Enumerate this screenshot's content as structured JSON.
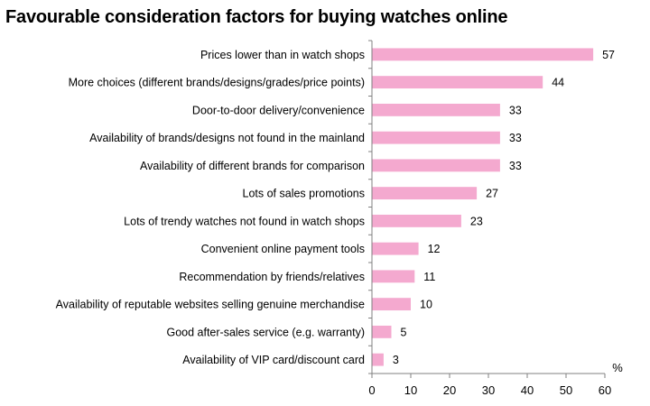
{
  "chart_data": {
    "type": "bar",
    "orientation": "horizontal",
    "title": "Favourable consideration factors for buying watches online",
    "categories": [
      "Prices lower than in watch shops",
      "More choices (different brands/designs/grades/price points)",
      "Door-to-door delivery/convenience",
      "Availability of brands/designs not found in the mainland",
      "Availability of different brands for comparison",
      "Lots of sales promotions",
      "Lots of trendy watches not found in watch shops",
      "Convenient online payment tools",
      "Recommendation by friends/relatives",
      "Availability of reputable websites selling genuine merchandise",
      "Good after-sales service (e.g. warranty)",
      "Availability of VIP card/discount card"
    ],
    "values": [
      57,
      44,
      33,
      33,
      33,
      27,
      23,
      12,
      11,
      10,
      5,
      3
    ],
    "value_labels": [
      "57",
      "44",
      "33",
      "33",
      "33",
      "27",
      "23",
      "12",
      "11",
      "10",
      "5",
      "3"
    ],
    "xlabel": "%",
    "xlim": [
      0,
      60
    ],
    "xticks": [
      0,
      10,
      20,
      30,
      40,
      50,
      60
    ],
    "xtick_labels": [
      "0",
      "10",
      "20",
      "30",
      "40",
      "50",
      "60"
    ],
    "grid": false,
    "legend": "none",
    "bar_color": "#f4a9cf",
    "axis_color": "#808080"
  }
}
